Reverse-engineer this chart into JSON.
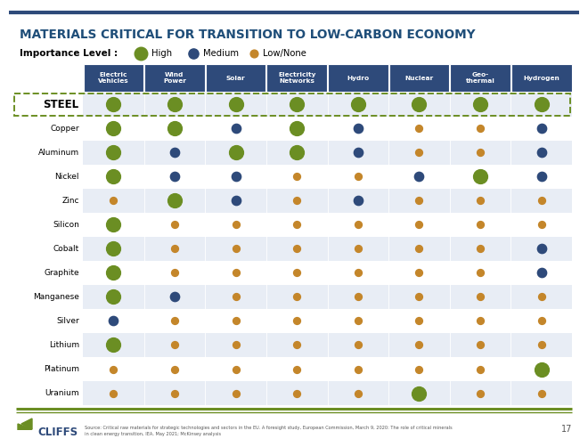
{
  "title": "MATERIALS CRITICAL FOR TRANSITION TO LOW-CARBON ECONOMY",
  "title_color": "#1F4E79",
  "bg_color": "#FFFFFF",
  "header_bg": "#2E4A7A",
  "header_text_color": "#FFFFFF",
  "columns": [
    "Electric\nVehicles",
    "Wind\nPower",
    "Solar",
    "Electricity\nNetworks",
    "Hydro",
    "Nuclear",
    "Geo-\nthermal",
    "Hydrogen"
  ],
  "rows": [
    "STEEL",
    "Copper",
    "Aluminum",
    "Nickel",
    "Zinc",
    "Silicon",
    "Cobalt",
    "Graphite",
    "Manganese",
    "Silver",
    "Lithium",
    "Platinum",
    "Uranium"
  ],
  "table_data": {
    "STEEL": [
      "H",
      "H",
      "H",
      "H",
      "H",
      "H",
      "H",
      "H"
    ],
    "Copper": [
      "H",
      "H",
      "M",
      "H",
      "M",
      "L",
      "L",
      "M"
    ],
    "Aluminum": [
      "H",
      "M",
      "H",
      "H",
      "M",
      "L",
      "L",
      "M"
    ],
    "Nickel": [
      "H",
      "M",
      "M",
      "L",
      "L",
      "M",
      "H",
      "M"
    ],
    "Zinc": [
      "L",
      "H",
      "M",
      "L",
      "M",
      "L",
      "L",
      "L"
    ],
    "Silicon": [
      "H",
      "L",
      "L",
      "L",
      "L",
      "L",
      "L",
      "L"
    ],
    "Cobalt": [
      "H",
      "L",
      "L",
      "L",
      "L",
      "L",
      "L",
      "M"
    ],
    "Graphite": [
      "H",
      "L",
      "L",
      "L",
      "L",
      "L",
      "L",
      "M"
    ],
    "Manganese": [
      "H",
      "M",
      "L",
      "L",
      "L",
      "L",
      "L",
      "L"
    ],
    "Silver": [
      "M",
      "L",
      "L",
      "L",
      "L",
      "L",
      "L",
      "L"
    ],
    "Lithium": [
      "H",
      "L",
      "L",
      "L",
      "L",
      "L",
      "L",
      "L"
    ],
    "Platinum": [
      "L",
      "L",
      "L",
      "L",
      "L",
      "L",
      "L",
      "H"
    ],
    "Uranium": [
      "L",
      "L",
      "L",
      "L",
      "L",
      "H",
      "L",
      "L"
    ]
  },
  "footer_text": "Source: Critical raw materials for strategic technologies and sectors in the EU. A foresight study, European Commission, March 9, 2020: The role of critical minerals\nin clean energy transition, IEA, May 2021; McKinsey analysis",
  "page_number": "17",
  "steel_border_color": "#6B8E23",
  "stripe_color": "#E8EDF5",
  "high_color": "#6B8E23",
  "medium_color": "#2E4A7A",
  "low_color": "#C4862A",
  "cliffs_logo_color": "#6B8E23",
  "cliffs_text_color": "#2E4A7A",
  "top_line_color": "#2E4A7A",
  "bottom_line_color": "#6B8E23"
}
